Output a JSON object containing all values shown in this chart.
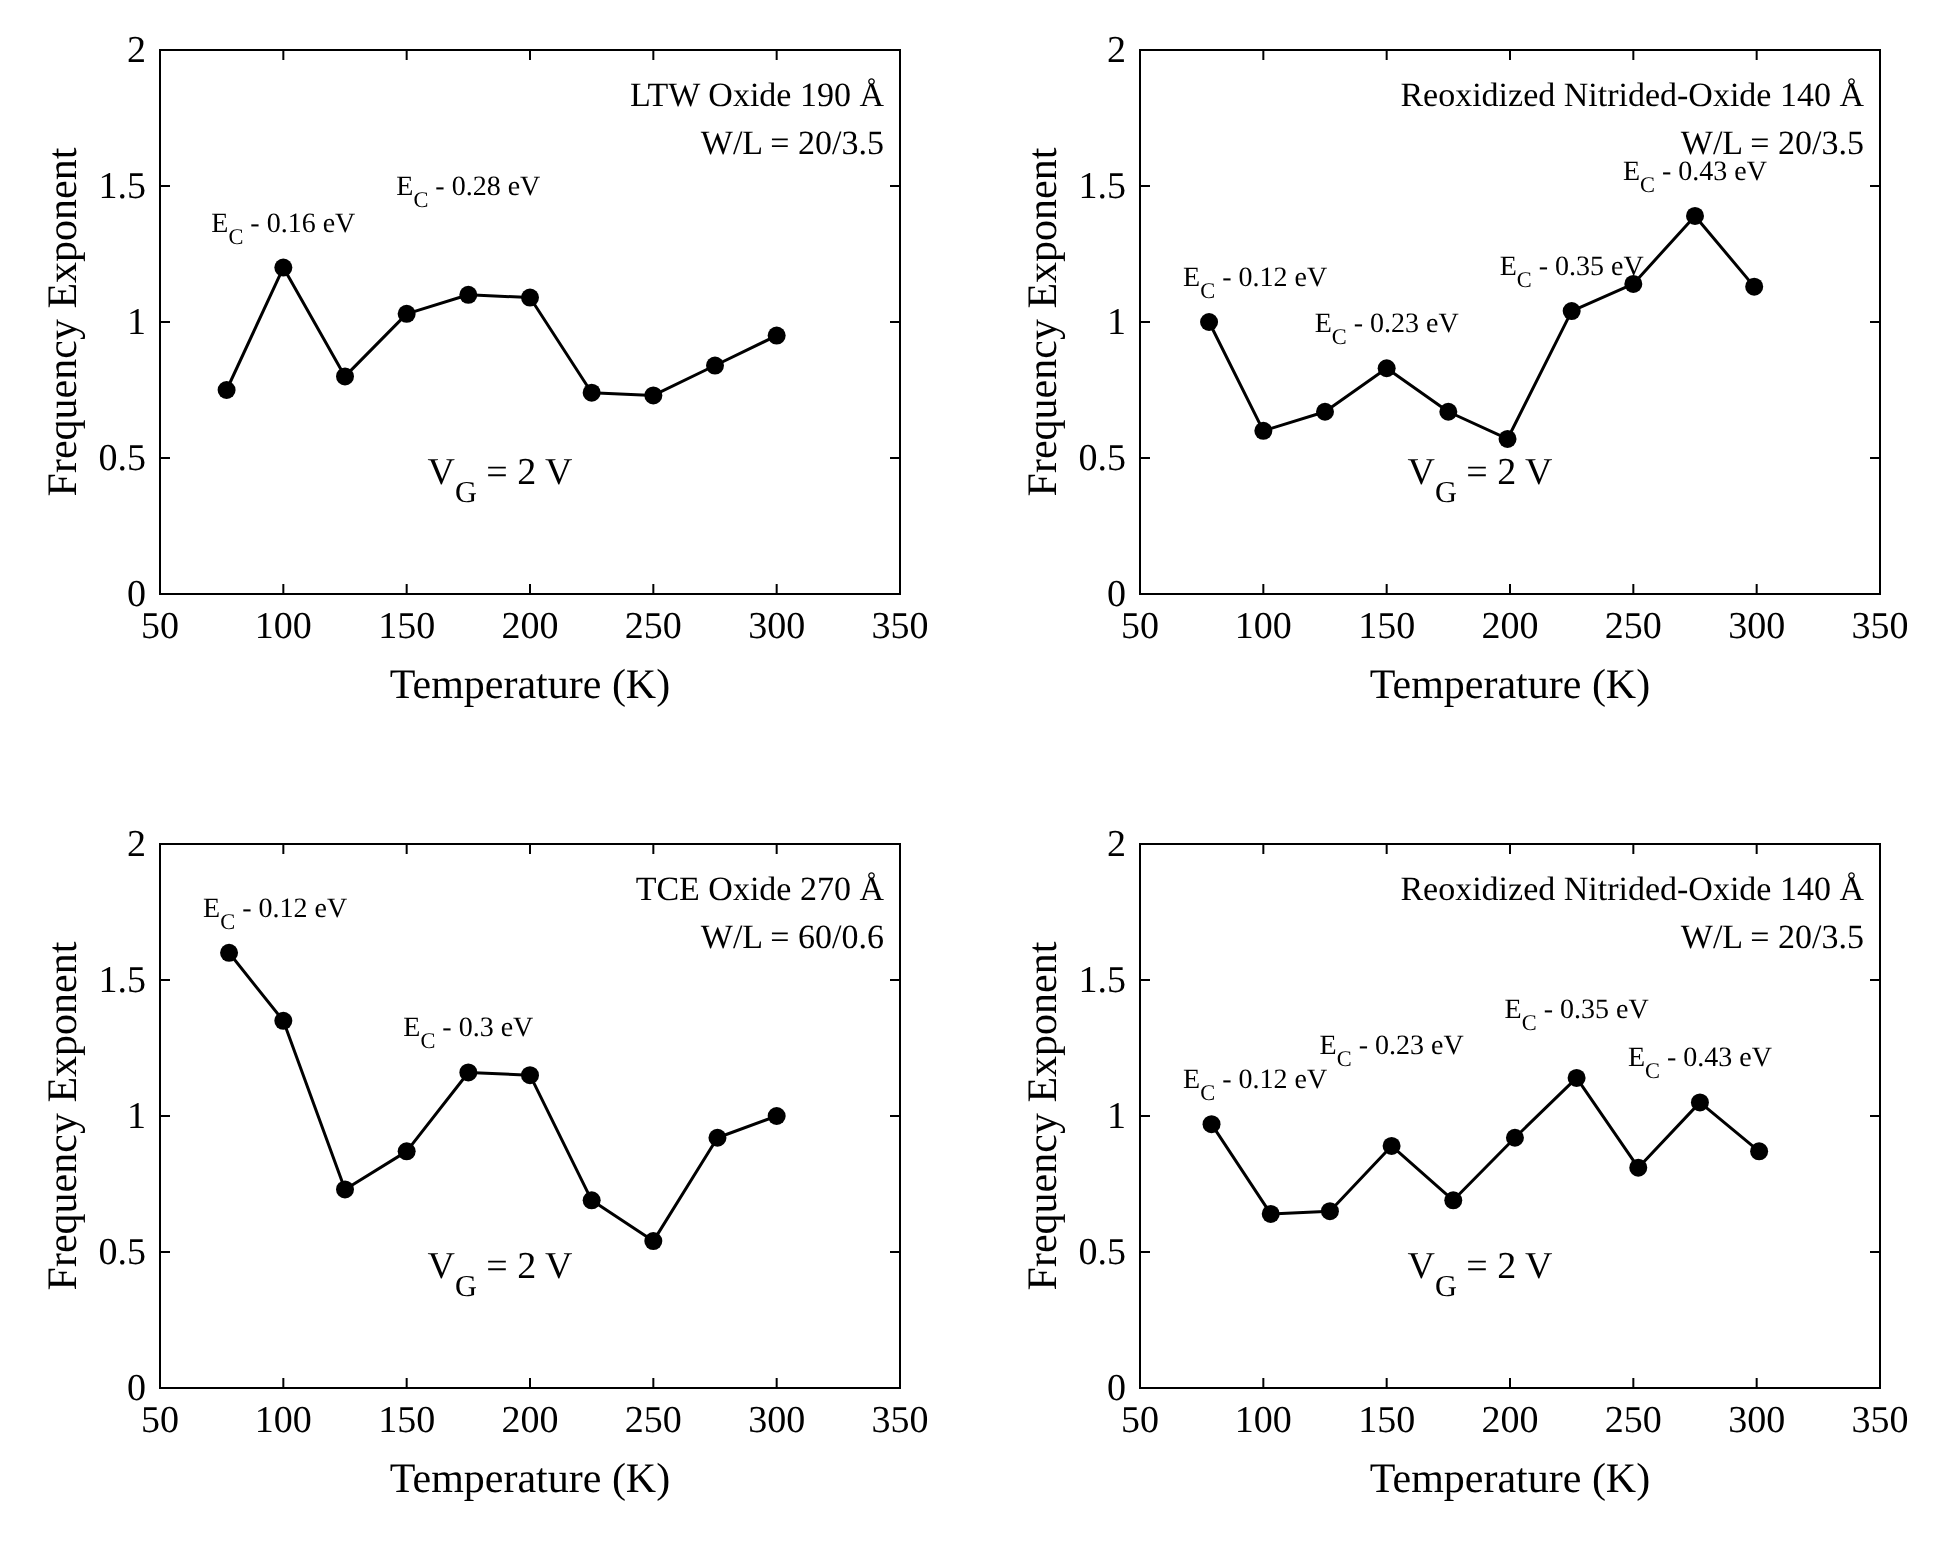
{
  "chart_data": [
    {
      "type": "line",
      "xlabel": "Temperature (K)",
      "ylabel": "Frequency Exponent",
      "xlim": [
        50,
        350
      ],
      "xticks": [
        50,
        100,
        150,
        200,
        250,
        300,
        350
      ],
      "ylim": [
        0,
        2
      ],
      "yticks": [
        0,
        0.5,
        1,
        1.5,
        2
      ],
      "marker": "circle",
      "grid": false,
      "x": [
        77,
        100,
        125,
        150,
        175,
        200,
        225,
        250,
        275,
        300
      ],
      "series": [
        {
          "color": "#000000",
          "values": [
            0.75,
            1.2,
            0.8,
            1.03,
            1.1,
            1.09,
            0.74,
            0.73,
            0.84,
            0.95
          ]
        }
      ],
      "annotations": [
        "LTW Oxide 190 Å",
        "W/L = 20/3.5",
        {
          "text": "E$_{C}$ - 0.16 eV",
          "x": 100,
          "y": 1.2
        },
        {
          "text": "E$_{C}$ - 0.28 eV",
          "x": 175,
          "y": 1.1
        },
        "V$_{G}$ = 2 V"
      ]
    },
    {
      "type": "line",
      "xlabel": "Temperature (K)",
      "ylabel": "Frequency Exponent",
      "xlim": [
        50,
        350
      ],
      "xticks": [
        50,
        100,
        150,
        200,
        250,
        300,
        350
      ],
      "ylim": [
        0,
        2
      ],
      "yticks": [
        0,
        0.5,
        1,
        1.5,
        2
      ],
      "marker": "circle",
      "grid": false,
      "x": [
        78,
        100,
        125,
        150,
        175,
        199,
        225,
        250,
        275,
        299
      ],
      "series": [
        {
          "color": "#000000",
          "values": [
            1.0,
            0.6,
            0.67,
            0.83,
            0.67,
            0.57,
            1.04,
            1.14,
            1.39,
            1.13
          ]
        }
      ],
      "annotations": [
        "Reoxidized Nitrided-Oxide 140 Å",
        "W/L = 20/3.5",
        {
          "text": "E$_{C}$ - 0.12 eV",
          "x": 78,
          "y": 1.0
        },
        {
          "text": "E$_{C}$ - 0.23 eV",
          "x": 150,
          "y": 0.83
        },
        {
          "text": "E$_{C}$ - 0.35 eV",
          "x": 225,
          "y": 1.04
        },
        {
          "text": "E$_{C}$ - 0.43 eV",
          "x": 275,
          "y": 1.39
        },
        "V$_{G}$ = 2 V"
      ]
    },
    {
      "type": "line",
      "xlabel": "Temperature (K)",
      "ylabel": "Frequency Exponent",
      "xlim": [
        50,
        350
      ],
      "xticks": [
        50,
        100,
        150,
        200,
        250,
        300,
        350
      ],
      "ylim": [
        0,
        2
      ],
      "yticks": [
        0,
        0.5,
        1,
        1.5,
        2
      ],
      "marker": "circle",
      "grid": false,
      "x": [
        78,
        100,
        125,
        150,
        175,
        200,
        225,
        250,
        276,
        300
      ],
      "series": [
        {
          "color": "#000000",
          "values": [
            1.6,
            1.35,
            0.73,
            0.87,
            1.16,
            1.15,
            0.69,
            0.54,
            0.92,
            1.0
          ]
        }
      ],
      "annotations": [
        "TCE Oxide 270 Å",
        "W/L = 60/0.6",
        {
          "text": "E$_{C}$ - 0.12 eV",
          "x": 78,
          "y": 1.6
        },
        {
          "text": "E$_{C}$ - 0.3 eV",
          "x": 175,
          "y": 1.16
        },
        "V$_{G}$ = 2 V"
      ]
    },
    {
      "type": "line",
      "xlabel": "Temperature (K)",
      "ylabel": "Frequency Exponent",
      "xlim": [
        50,
        350
      ],
      "xticks": [
        50,
        100,
        150,
        200,
        250,
        300,
        350
      ],
      "ylim": [
        0,
        2
      ],
      "yticks": [
        0,
        0.5,
        1,
        1.5,
        2
      ],
      "marker": "circle",
      "grid": false,
      "x": [
        79,
        103,
        127,
        152,
        177,
        202,
        227,
        252,
        277,
        301
      ],
      "series": [
        {
          "color": "#000000",
          "values": [
            0.97,
            0.64,
            0.65,
            0.89,
            0.69,
            0.92,
            1.14,
            0.81,
            1.05,
            0.87
          ]
        }
      ],
      "annotations": [
        "Reoxidized Nitrided-Oxide 140 Å",
        "W/L = 20/3.5",
        {
          "text": "E$_{C}$ - 0.12 eV",
          "x": 79,
          "y": 0.97
        },
        {
          "text": "E$_{C}$ - 0.23 eV",
          "x": 152,
          "y": 0.89
        },
        {
          "text": "E$_{C}$ - 0.35 eV",
          "x": 227,
          "y": 1.14
        },
        {
          "text": "E$_{C}$ - 0.43 eV",
          "x": 277,
          "y": 1.05
        },
        "V$_{G}$ = 2 V"
      ]
    }
  ]
}
